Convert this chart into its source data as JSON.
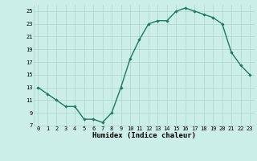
{
  "x": [
    0,
    1,
    2,
    3,
    4,
    5,
    6,
    7,
    8,
    9,
    10,
    11,
    12,
    13,
    14,
    15,
    16,
    17,
    18,
    19,
    20,
    21,
    22,
    23
  ],
  "y": [
    13,
    12,
    11,
    10,
    10,
    8,
    8,
    7.5,
    9,
    13,
    17.5,
    20.5,
    23,
    23.5,
    23.5,
    25,
    25.5,
    25,
    24.5,
    24,
    23,
    18.5,
    16.5,
    15
  ],
  "xlabel": "Humidex (Indice chaleur)",
  "line_color": "#1a7a5e",
  "marker": "D",
  "marker_size": 1.8,
  "bg_color": "#cceee8",
  "grid_color": "#aad4cc",
  "xlim": [
    -0.5,
    23.5
  ],
  "ylim": [
    7,
    26
  ],
  "yticks": [
    7,
    9,
    11,
    13,
    15,
    17,
    19,
    21,
    23,
    25
  ],
  "xticks": [
    0,
    1,
    2,
    3,
    4,
    5,
    6,
    7,
    8,
    9,
    10,
    11,
    12,
    13,
    14,
    15,
    16,
    17,
    18,
    19,
    20,
    21,
    22,
    23
  ],
  "tick_fontsize": 5,
  "xlabel_fontsize": 6.5,
  "linewidth": 1.0
}
